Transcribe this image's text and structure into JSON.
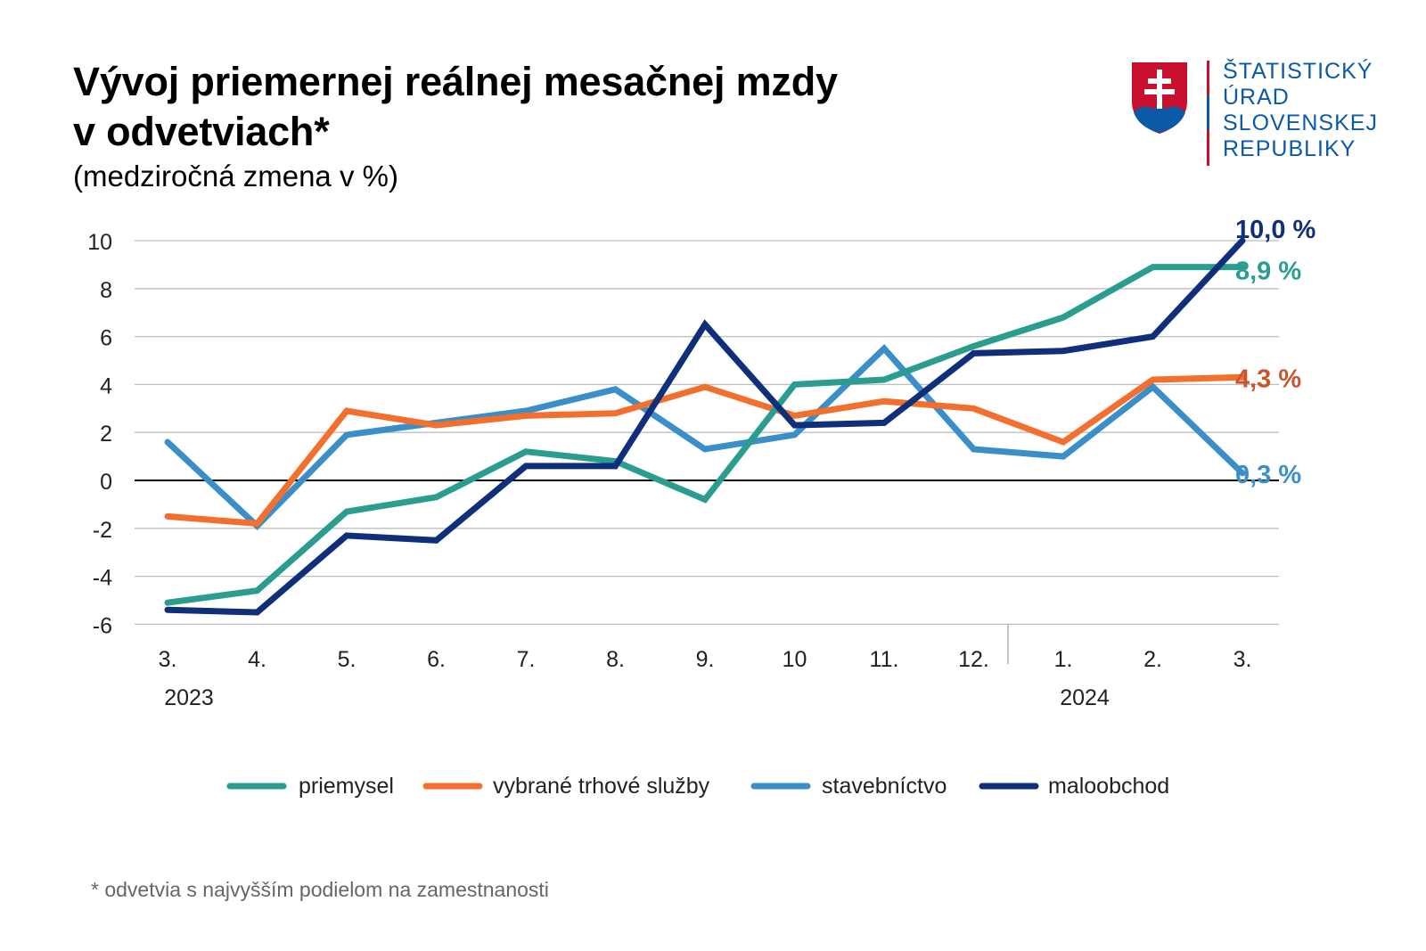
{
  "header": {
    "title_line1": "Vývoj priemernej reálnej mesačnej mzdy",
    "title_line2": "v odvetviach*",
    "subtitle": "(medziročná zmena v %)"
  },
  "logo": {
    "line1": "ŠTATISTICKÝ",
    "line2": "ÚRAD",
    "line3": "SLOVENSKEJ",
    "line4": "REPUBLIKY",
    "colors": {
      "red": "#c8102e",
      "blue": "#0b5aa8"
    }
  },
  "footnote": "* odvetvia s najvyšším podielom na zamestnanosti",
  "chart_data": {
    "type": "line",
    "title": "Vývoj priemernej reálnej mesačnej mzdy v odvetviach*",
    "subtitle": "(medziročná zmena v %)",
    "categories": [
      "3.",
      "4.",
      "5.",
      "6.",
      "7.",
      "8.",
      "9.",
      "10",
      "11.",
      "12.",
      "1.",
      "2.",
      "3."
    ],
    "year_labels": [
      {
        "label": "2023",
        "category_index": 0
      },
      {
        "label": "2024",
        "category_index": 10
      }
    ],
    "ylim": [
      -6,
      10
    ],
    "yticks": [
      10,
      8,
      6,
      4,
      2,
      0,
      -2,
      -4,
      -6
    ],
    "grid": true,
    "legend_position": "bottom",
    "series": [
      {
        "name": "priemysel",
        "color": "#2a9d8f",
        "values": [
          -5.1,
          -4.6,
          -1.3,
          -0.7,
          1.2,
          0.8,
          -0.8,
          4.0,
          4.2,
          5.6,
          6.8,
          8.9,
          8.9
        ],
        "end_label": "8,9 %"
      },
      {
        "name": "vybrané trhové služby",
        "color": "#f26f2d",
        "values": [
          -1.5,
          -1.8,
          2.9,
          2.3,
          2.7,
          2.8,
          3.9,
          2.7,
          3.3,
          3.0,
          1.6,
          4.2,
          4.3
        ],
        "end_label": "4,3 %"
      },
      {
        "name": "stavebníctvo",
        "color": "#3a8fc8",
        "values": [
          1.6,
          -1.9,
          1.9,
          2.4,
          2.9,
          3.8,
          1.3,
          1.9,
          5.5,
          1.3,
          1.0,
          3.9,
          0.3
        ],
        "end_label": "0,3 %"
      },
      {
        "name": "maloobchod",
        "color": "#0f2f7a",
        "values": [
          -5.4,
          -5.5,
          -2.3,
          -2.5,
          0.6,
          0.6,
          6.5,
          2.3,
          2.4,
          5.3,
          5.4,
          6.0,
          10.0
        ],
        "end_label": "10,0 %"
      }
    ],
    "end_label_colors": [
      "#2a9d8f",
      "#c8562a",
      "#3a8fc8",
      "#0f2f7a"
    ]
  }
}
